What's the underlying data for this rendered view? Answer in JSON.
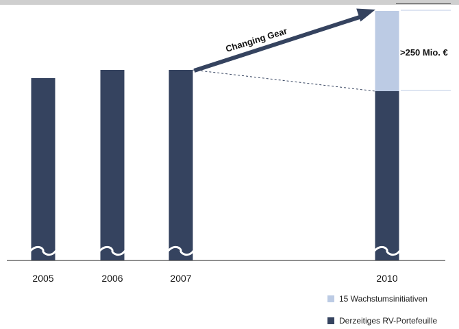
{
  "chart_data": {
    "type": "bar",
    "stacked": true,
    "axis_break": true,
    "categories": [
      "2005",
      "2006",
      "2007",
      "2010"
    ],
    "series": [
      {
        "name": "Derzeitiges RV-Portefeuille",
        "color": "#35435f",
        "values": [
          266,
          278,
          278,
          247
        ]
      },
      {
        "name": "15 Wachstumsinitiativen",
        "color": "#bccbe4",
        "values": [
          0,
          0,
          0,
          117
        ]
      }
    ],
    "ylim": [
      0,
      380
    ],
    "title": "",
    "xlabel": "",
    "ylabel": "",
    "legend_position": "bottom-right",
    "annotations": {
      "arrow_label": "Changing Gear",
      "bracket_label": ">250 Mio. €"
    },
    "colors": {
      "dashed_line": "#35435f",
      "bracket": "#bccbe4",
      "arrow": "#35435f"
    }
  }
}
